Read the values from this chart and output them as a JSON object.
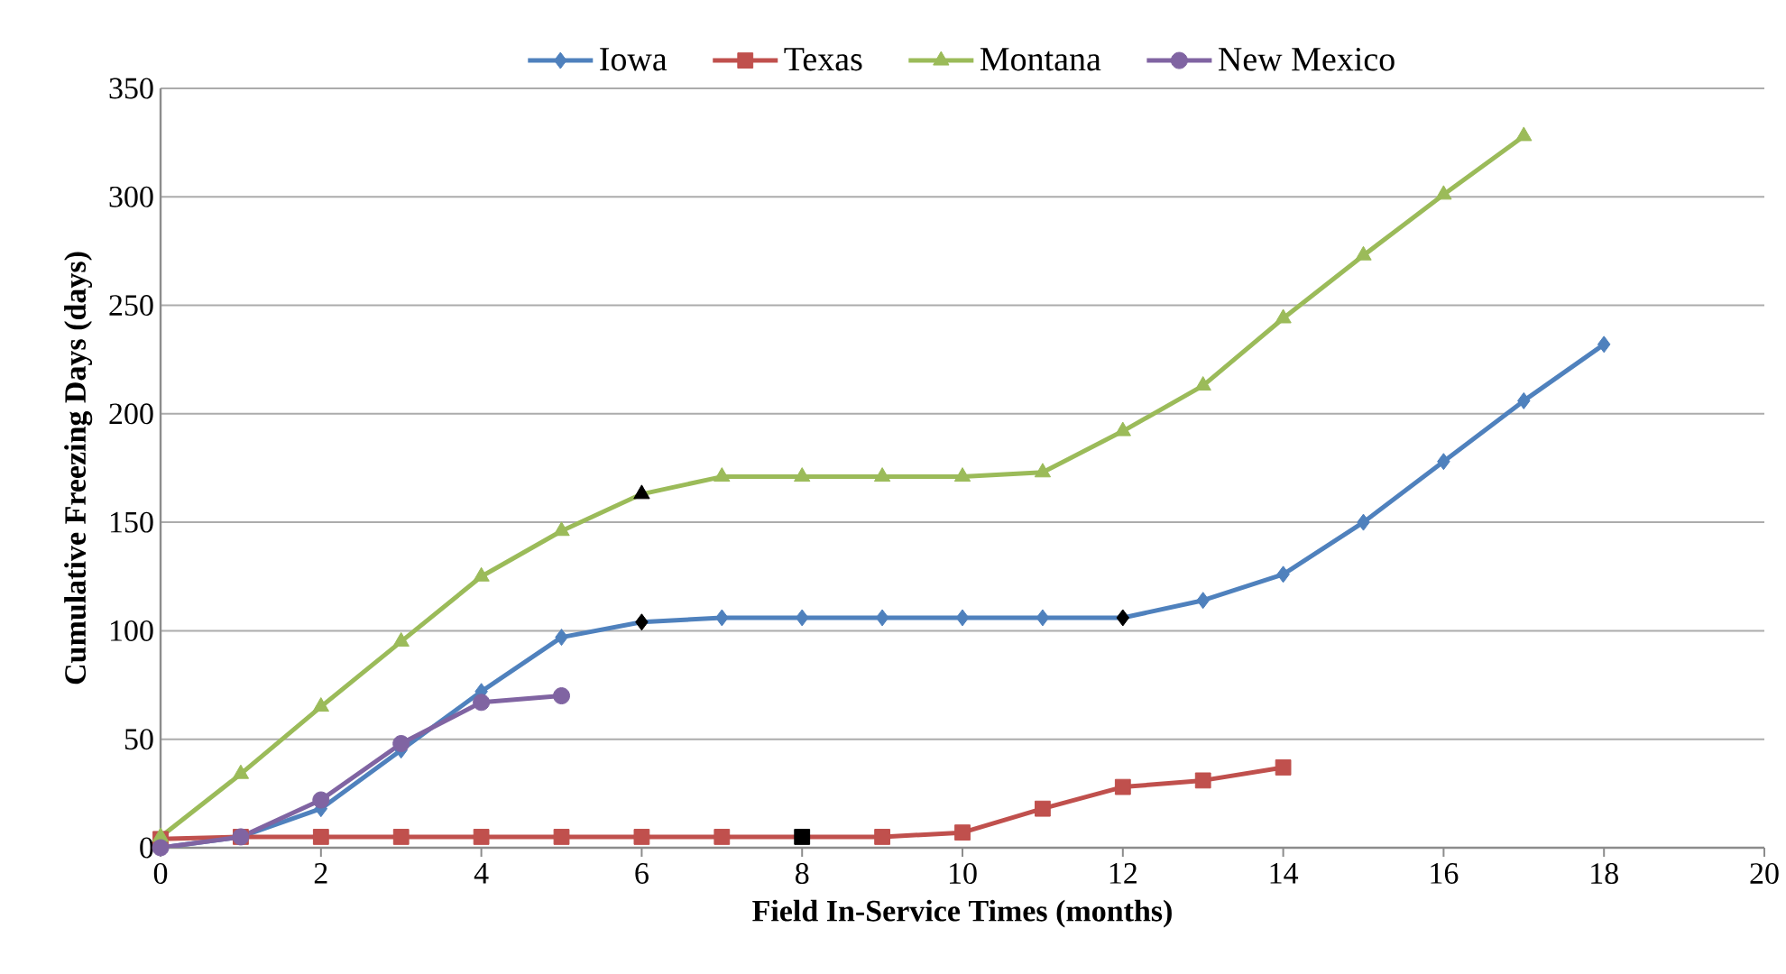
{
  "chart_data": {
    "type": "line",
    "xlabel": "Field In-Service Times (months)",
    "ylabel": "Cumulative Freezing Days (days)",
    "xlim": [
      0,
      20
    ],
    "xticks": [
      0,
      2,
      4,
      6,
      8,
      10,
      12,
      14,
      16,
      18,
      20
    ],
    "ylim": [
      0,
      350
    ],
    "yticks": [
      0,
      50,
      100,
      150,
      200,
      250,
      300,
      350
    ],
    "grid": "y",
    "legend": "top",
    "series": [
      {
        "name": "Iowa",
        "color": "#4f81bd",
        "marker": "diamond",
        "x": [
          0,
          1,
          2,
          3,
          4,
          5,
          6,
          7,
          8,
          9,
          10,
          11,
          12,
          13,
          14,
          15,
          16,
          17,
          18
        ],
        "values": [
          0,
          5,
          18,
          45,
          72,
          97,
          104,
          106,
          106,
          106,
          106,
          106,
          106,
          114,
          126,
          150,
          178,
          206,
          232
        ],
        "colors": [
          "#4f81bd",
          "#4f81bd",
          "#4f81bd",
          "#4f81bd",
          "#4f81bd",
          "#4f81bd",
          "#000000",
          "#4f81bd",
          "#4f81bd",
          "#4f81bd",
          "#4f81bd",
          "#4f81bd",
          "#000000",
          "#4f81bd",
          "#4f81bd",
          "#4f81bd",
          "#4f81bd",
          "#4f81bd",
          "#4f81bd"
        ]
      },
      {
        "name": "Texas",
        "color": "#c0504d",
        "marker": "square",
        "x": [
          0,
          1,
          2,
          3,
          4,
          5,
          6,
          7,
          8,
          9,
          10,
          11,
          12,
          13,
          14
        ],
        "values": [
          4,
          5,
          5,
          5,
          5,
          5,
          5,
          5,
          5,
          5,
          7,
          18,
          28,
          31,
          37
        ],
        "colors": [
          "#c0504d",
          "#c0504d",
          "#c0504d",
          "#c0504d",
          "#c0504d",
          "#c0504d",
          "#c0504d",
          "#c0504d",
          "#000000",
          "#c0504d",
          "#c0504d",
          "#c0504d",
          "#c0504d",
          "#c0504d",
          "#c0504d"
        ]
      },
      {
        "name": "Montana",
        "color": "#9bbb59",
        "marker": "triangle",
        "x": [
          0,
          1,
          2,
          3,
          4,
          5,
          6,
          7,
          8,
          9,
          10,
          11,
          12,
          13,
          14,
          15,
          16,
          17
        ],
        "values": [
          5,
          34,
          65,
          95,
          125,
          146,
          163,
          171,
          171,
          171,
          171,
          173,
          192,
          213,
          244,
          273,
          301,
          328
        ],
        "colors": [
          "#9bbb59",
          "#9bbb59",
          "#9bbb59",
          "#9bbb59",
          "#9bbb59",
          "#9bbb59",
          "#000000",
          "#9bbb59",
          "#9bbb59",
          "#9bbb59",
          "#9bbb59",
          "#9bbb59",
          "#9bbb59",
          "#9bbb59",
          "#9bbb59",
          "#9bbb59",
          "#9bbb59",
          "#9bbb59"
        ]
      },
      {
        "name": "New Mexico",
        "color": "#8064a2",
        "marker": "circle",
        "x": [
          0,
          1,
          2,
          3,
          4,
          5
        ],
        "values": [
          0,
          5,
          22,
          48,
          67,
          70
        ]
      }
    ]
  }
}
